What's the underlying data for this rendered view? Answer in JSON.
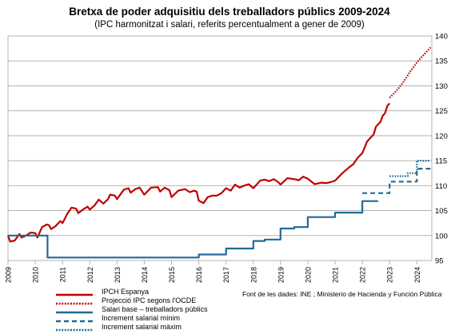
{
  "chart_data": {
    "type": "line",
    "title": "Bretxa de poder adquisitiu dels treballadors públics 2009-2024",
    "subtitle": "(IPC harmonitzat i salari, referits percentualment a gener de 2009)",
    "source": "Font de les dades: INE ; Ministerio de Hacienda y Función Pública",
    "xlim": [
      2009,
      2024.55
    ],
    "ylim": [
      95,
      140
    ],
    "x_ticks": [
      2009,
      2010,
      2011,
      2012,
      2013,
      2014,
      2015,
      2016,
      2017,
      2018,
      2019,
      2020,
      2021,
      2022,
      2023,
      2024
    ],
    "x_tick_labels": [
      "2009",
      "2010",
      "2011",
      "2012",
      "2013",
      "2014",
      "2015",
      "2016",
      "2017",
      "2018",
      "2019",
      "2020",
      "2021",
      "2022",
      "2023",
      "2024"
    ],
    "y_ticks": [
      95,
      100,
      105,
      110,
      115,
      120,
      125,
      130,
      135,
      140
    ],
    "y_tick_labels": [
      "95",
      "100",
      "105",
      "110",
      "115",
      "120",
      "125",
      "130",
      "135",
      "140"
    ],
    "y_axis_position": "right",
    "grid": "horizontal",
    "legend_position": "bottom-left",
    "series": [
      {
        "name": "IPCH Espanya",
        "color": "#c00000",
        "style": "solid",
        "points": [
          [
            2009.0,
            100.0
          ],
          [
            2009.08,
            98.8
          ],
          [
            2009.25,
            99.0
          ],
          [
            2009.42,
            100.3
          ],
          [
            2009.5,
            99.6
          ],
          [
            2009.67,
            100.0
          ],
          [
            2009.83,
            100.6
          ],
          [
            2010.0,
            100.5
          ],
          [
            2010.08,
            99.6
          ],
          [
            2010.25,
            101.7
          ],
          [
            2010.42,
            102.2
          ],
          [
            2010.5,
            102.1
          ],
          [
            2010.58,
            101.3
          ],
          [
            2010.75,
            101.9
          ],
          [
            2010.92,
            102.9
          ],
          [
            2011.0,
            102.5
          ],
          [
            2011.17,
            104.3
          ],
          [
            2011.33,
            105.6
          ],
          [
            2011.5,
            105.4
          ],
          [
            2011.58,
            104.5
          ],
          [
            2011.75,
            105.2
          ],
          [
            2011.92,
            105.8
          ],
          [
            2012.0,
            105.2
          ],
          [
            2012.17,
            106.0
          ],
          [
            2012.33,
            107.2
          ],
          [
            2012.5,
            106.4
          ],
          [
            2012.67,
            107.3
          ],
          [
            2012.75,
            108.2
          ],
          [
            2012.92,
            108.0
          ],
          [
            2013.0,
            107.3
          ],
          [
            2013.25,
            109.2
          ],
          [
            2013.42,
            109.5
          ],
          [
            2013.5,
            108.6
          ],
          [
            2013.67,
            109.3
          ],
          [
            2013.83,
            109.6
          ],
          [
            2014.0,
            108.2
          ],
          [
            2014.25,
            109.6
          ],
          [
            2014.5,
            109.7
          ],
          [
            2014.58,
            108.8
          ],
          [
            2014.75,
            109.6
          ],
          [
            2014.92,
            109.1
          ],
          [
            2015.0,
            107.7
          ],
          [
            2015.25,
            109.0
          ],
          [
            2015.5,
            109.3
          ],
          [
            2015.67,
            108.7
          ],
          [
            2015.83,
            109.0
          ],
          [
            2015.92,
            108.8
          ],
          [
            2016.0,
            107.0
          ],
          [
            2016.17,
            106.5
          ],
          [
            2016.33,
            107.7
          ],
          [
            2016.5,
            108.0
          ],
          [
            2016.67,
            108.0
          ],
          [
            2016.83,
            108.5
          ],
          [
            2017.0,
            109.5
          ],
          [
            2017.17,
            109.0
          ],
          [
            2017.33,
            110.2
          ],
          [
            2017.5,
            109.6
          ],
          [
            2017.67,
            110.0
          ],
          [
            2017.83,
            110.3
          ],
          [
            2018.0,
            109.5
          ],
          [
            2018.25,
            111.0
          ],
          [
            2018.42,
            111.2
          ],
          [
            2018.58,
            110.9
          ],
          [
            2018.75,
            111.3
          ],
          [
            2018.92,
            110.7
          ],
          [
            2019.0,
            110.2
          ],
          [
            2019.25,
            111.5
          ],
          [
            2019.5,
            111.3
          ],
          [
            2019.67,
            111.1
          ],
          [
            2019.83,
            111.8
          ],
          [
            2020.0,
            111.4
          ],
          [
            2020.25,
            110.3
          ],
          [
            2020.5,
            110.6
          ],
          [
            2020.67,
            110.5
          ],
          [
            2020.83,
            110.7
          ],
          [
            2021.0,
            111.0
          ],
          [
            2021.25,
            112.4
          ],
          [
            2021.5,
            113.6
          ],
          [
            2021.67,
            114.3
          ],
          [
            2021.83,
            115.6
          ],
          [
            2022.0,
            116.5
          ],
          [
            2022.17,
            118.8
          ],
          [
            2022.25,
            119.3
          ],
          [
            2022.42,
            120.3
          ],
          [
            2022.5,
            121.8
          ],
          [
            2022.58,
            122.3
          ],
          [
            2022.67,
            122.8
          ],
          [
            2022.75,
            124.0
          ],
          [
            2022.83,
            124.5
          ],
          [
            2022.92,
            126.0
          ],
          [
            2023.0,
            126.5
          ]
        ]
      },
      {
        "name": "Projecció IPC segons l'OCDE",
        "color": "#c00000",
        "style": "dotted",
        "points": [
          [
            2023.0,
            127.6
          ],
          [
            2023.25,
            129.0
          ],
          [
            2023.5,
            130.7
          ],
          [
            2023.75,
            132.8
          ],
          [
            2024.0,
            134.7
          ],
          [
            2024.5,
            137.7
          ]
        ]
      },
      {
        "name": "Salari base – treballadors públics",
        "color": "#1f6b96",
        "style": "solid",
        "points": [
          [
            2009.0,
            100.0
          ],
          [
            2010.0,
            100.0
          ],
          [
            2010.45,
            100.0
          ],
          [
            2010.45,
            95.6
          ],
          [
            2016.0,
            95.6
          ],
          [
            2016.0,
            96.2
          ],
          [
            2017.0,
            96.2
          ],
          [
            2017.0,
            97.4
          ],
          [
            2018.0,
            97.4
          ],
          [
            2018.0,
            98.9
          ],
          [
            2018.42,
            98.9
          ],
          [
            2018.42,
            99.2
          ],
          [
            2019.0,
            99.2
          ],
          [
            2019.0,
            101.4
          ],
          [
            2019.5,
            101.4
          ],
          [
            2019.5,
            101.7
          ],
          [
            2020.0,
            101.7
          ],
          [
            2020.0,
            103.7
          ],
          [
            2021.0,
            103.7
          ],
          [
            2021.0,
            104.6
          ],
          [
            2022.0,
            104.6
          ],
          [
            2022.0,
            106.9
          ],
          [
            2022.58,
            106.9
          ]
        ]
      },
      {
        "name": "Increment salarial mínim",
        "color": "#1f6b96",
        "style": "dashed",
        "points": [
          [
            2022.0,
            108.5
          ],
          [
            2023.0,
            108.5
          ],
          [
            2023.0,
            110.8
          ],
          [
            2024.0,
            110.8
          ],
          [
            2024.0,
            113.4
          ],
          [
            2024.5,
            113.4
          ]
        ]
      },
      {
        "name": "Increment salarial màxim",
        "color": "#1f6b96",
        "style": "dotted",
        "points": [
          [
            2023.0,
            111.9
          ],
          [
            2023.67,
            111.9
          ],
          [
            2023.67,
            112.5
          ],
          [
            2024.0,
            112.5
          ],
          [
            2024.0,
            115.0
          ],
          [
            2024.5,
            115.0
          ]
        ]
      }
    ]
  }
}
